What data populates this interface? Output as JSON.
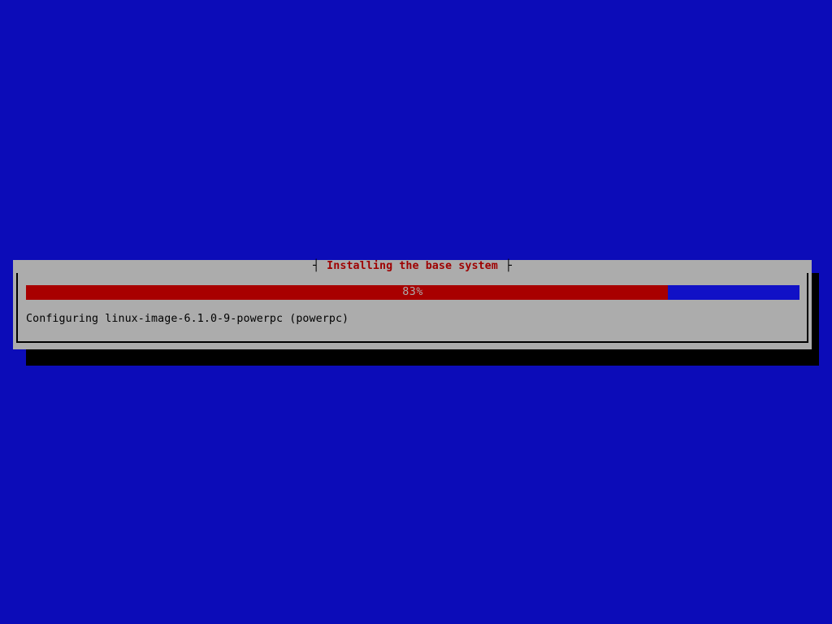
{
  "screen": {
    "background_color": "#0c0cb8"
  },
  "dialog": {
    "title": "Installing the base system",
    "title_color": "#9e0000",
    "background_color": "#acacac",
    "border_color": "#000000",
    "shadow_color": "#000000",
    "tick_left": "┤",
    "tick_right": "├",
    "progress": {
      "percent": 83,
      "label": "83%",
      "width": "83%",
      "filled_color": "#a80000",
      "empty_color": "#1111c6",
      "label_color": "#acacac"
    },
    "status_text": "Configuring linux-image-6.1.0-9-powerpc (powerpc)",
    "status_color": "#000000"
  }
}
